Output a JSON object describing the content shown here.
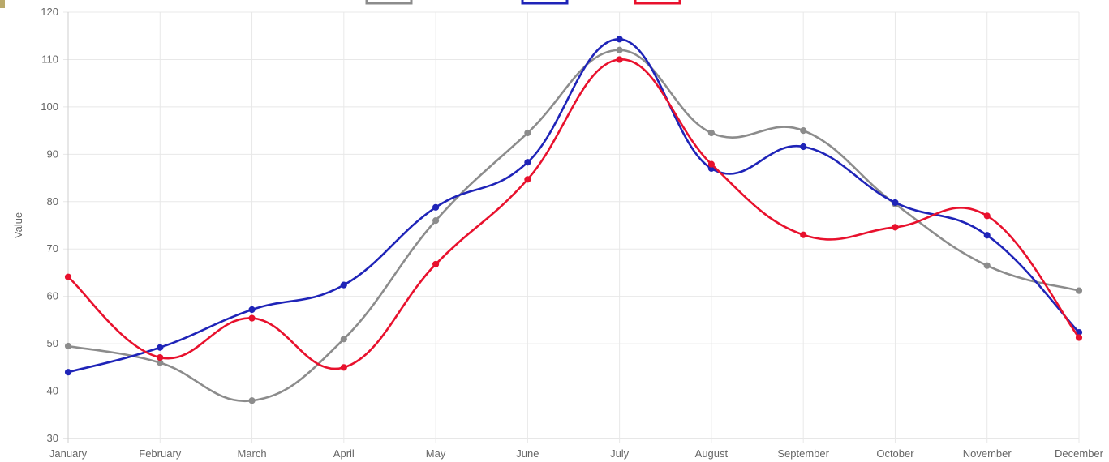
{
  "chart_data": {
    "type": "line",
    "title": "",
    "xlabel": "",
    "ylabel": "Value",
    "categories": [
      "January",
      "February",
      "March",
      "April",
      "May",
      "June",
      "July",
      "August",
      "September",
      "October",
      "November",
      "December"
    ],
    "ylim": [
      30,
      120
    ],
    "yticks": [
      "30",
      "40",
      "50",
      "60",
      "70",
      "80",
      "90",
      "100",
      "110",
      "120"
    ],
    "grid": true,
    "legend": "top-center",
    "series": [
      {
        "color": "#8c8c8c",
        "values": [
          49.5,
          46,
          38,
          51,
          76,
          94.5,
          112,
          94.5,
          95,
          79.5,
          66.5,
          61.2
        ]
      },
      {
        "color": "#1f24b8",
        "values": [
          44,
          49.2,
          57.2,
          62.4,
          78.8,
          88.3,
          114.3,
          87,
          91.6,
          79.8,
          72.9,
          52.4
        ]
      },
      {
        "color": "#e8112d",
        "values": [
          64.1,
          47.1,
          55.4,
          45,
          66.8,
          84.7,
          110,
          87.9,
          73,
          74.6,
          77,
          51.3
        ]
      }
    ]
  }
}
